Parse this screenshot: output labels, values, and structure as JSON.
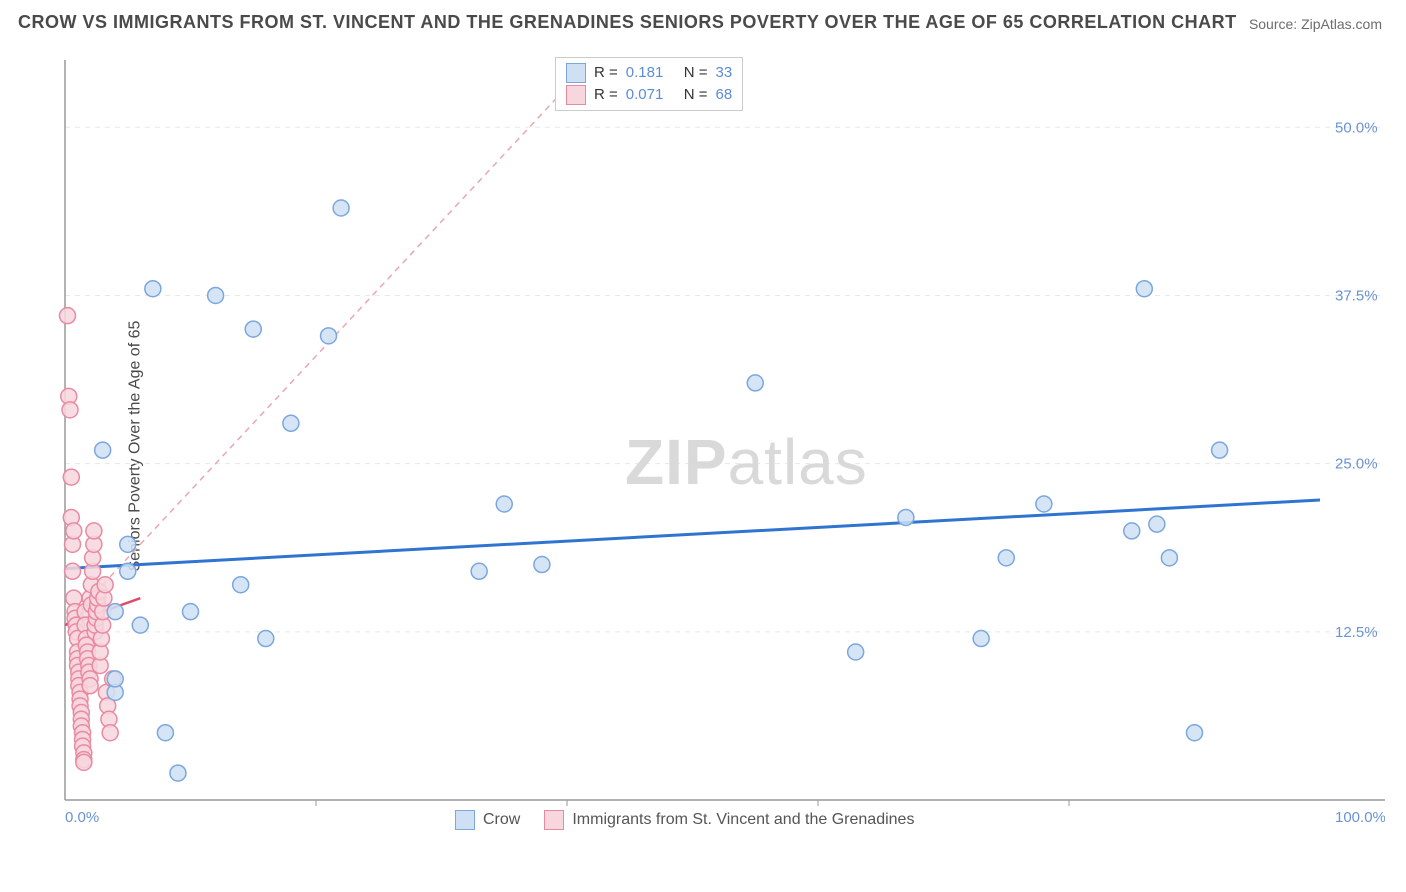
{
  "title": "CROW VS IMMIGRANTS FROM ST. VINCENT AND THE GRENADINES SENIORS POVERTY OVER THE AGE OF 65 CORRELATION CHART",
  "source_label": "Source: ZipAtlas.com",
  "ylabel": "Seniors Poverty Over the Age of 65",
  "watermark_bold": "ZIP",
  "watermark_light": "atlas",
  "chart": {
    "type": "scatter",
    "xlim": [
      0,
      100
    ],
    "ylim": [
      0,
      55
    ],
    "x_ticks": [
      0,
      100
    ],
    "x_tick_labels": [
      "0.0%",
      "100.0%"
    ],
    "y_ticks": [
      12.5,
      25.0,
      37.5,
      50.0
    ],
    "y_tick_labels": [
      "12.5%",
      "25.0%",
      "37.5%",
      "50.0%"
    ],
    "grid_color": "#e8e8e8",
    "axis_color": "#999999",
    "background": "#ffffff",
    "marker_radius": 8,
    "marker_stroke_width": 1.5,
    "series": [
      {
        "name": "Crow",
        "fill": "#cfe0f5",
        "stroke": "#7aa7dd",
        "trend": {
          "x1": 0,
          "y1": 17.2,
          "x2": 100,
          "y2": 22.3,
          "stroke": "#2f74d0",
          "width": 3,
          "dash": "none"
        },
        "points": [
          [
            4,
            14
          ],
          [
            5,
            19
          ],
          [
            5,
            17
          ],
          [
            7,
            38
          ],
          [
            8,
            5
          ],
          [
            9,
            2
          ],
          [
            10,
            14
          ],
          [
            12,
            37.5
          ],
          [
            14,
            16
          ],
          [
            15,
            35
          ],
          [
            16,
            12
          ],
          [
            18,
            28
          ],
          [
            21,
            34.5
          ],
          [
            22,
            44
          ],
          [
            33,
            17
          ],
          [
            35,
            22
          ],
          [
            38,
            17.5
          ],
          [
            55,
            31
          ],
          [
            63,
            11
          ],
          [
            67,
            21
          ],
          [
            73,
            12
          ],
          [
            75,
            18
          ],
          [
            78,
            22
          ],
          [
            85,
            20
          ],
          [
            86,
            38
          ],
          [
            87,
            20.5
          ],
          [
            88,
            18
          ],
          [
            90,
            5
          ],
          [
            92,
            26
          ],
          [
            3,
            26
          ],
          [
            4,
            8
          ],
          [
            6,
            13
          ],
          [
            4,
            9
          ]
        ]
      },
      {
        "name": "Immigrants from St. Vincent and the Grenadines",
        "fill": "#f7d6de",
        "stroke": "#e98aa0",
        "trend": {
          "x1": 0,
          "y1": 13,
          "x2": 42,
          "y2": 55,
          "stroke": "#e9a6b4",
          "width": 1.5,
          "dash": "6,5"
        },
        "trend_solid": {
          "x1": 0,
          "y1": 13,
          "x2": 6,
          "y2": 15,
          "stroke": "#e14b6a",
          "width": 2.5
        },
        "points": [
          [
            0.2,
            36
          ],
          [
            0.3,
            30
          ],
          [
            0.4,
            29
          ],
          [
            0.5,
            24
          ],
          [
            0.5,
            21
          ],
          [
            0.6,
            19
          ],
          [
            0.6,
            17
          ],
          [
            0.7,
            20
          ],
          [
            0.7,
            15
          ],
          [
            0.8,
            14
          ],
          [
            0.8,
            13.5
          ],
          [
            0.9,
            13
          ],
          [
            0.9,
            12.5
          ],
          [
            1,
            12
          ],
          [
            1,
            11
          ],
          [
            1,
            10.5
          ],
          [
            1,
            10
          ],
          [
            1.1,
            9.5
          ],
          [
            1.1,
            9
          ],
          [
            1.1,
            8.5
          ],
          [
            1.2,
            8
          ],
          [
            1.2,
            7.5
          ],
          [
            1.2,
            7
          ],
          [
            1.3,
            6.5
          ],
          [
            1.3,
            6
          ],
          [
            1.3,
            5.5
          ],
          [
            1.4,
            5
          ],
          [
            1.4,
            4.5
          ],
          [
            1.4,
            4
          ],
          [
            1.5,
            3.5
          ],
          [
            1.5,
            3
          ],
          [
            1.5,
            2.8
          ],
          [
            1.6,
            14
          ],
          [
            1.6,
            13
          ],
          [
            1.7,
            12
          ],
          [
            1.7,
            11.5
          ],
          [
            1.8,
            11
          ],
          [
            1.8,
            10.5
          ],
          [
            1.9,
            10
          ],
          [
            1.9,
            9.5
          ],
          [
            2,
            9
          ],
          [
            2,
            8.5
          ],
          [
            2,
            15
          ],
          [
            2.1,
            14.5
          ],
          [
            2.1,
            16
          ],
          [
            2.2,
            17
          ],
          [
            2.2,
            18
          ],
          [
            2.3,
            19
          ],
          [
            2.3,
            20
          ],
          [
            2.4,
            12.5
          ],
          [
            2.4,
            13
          ],
          [
            2.5,
            13.5
          ],
          [
            2.5,
            14
          ],
          [
            2.6,
            14.5
          ],
          [
            2.6,
            15
          ],
          [
            2.7,
            15.5
          ],
          [
            2.8,
            10
          ],
          [
            2.8,
            11
          ],
          [
            2.9,
            12
          ],
          [
            3,
            13
          ],
          [
            3,
            14
          ],
          [
            3.1,
            15
          ],
          [
            3.2,
            16
          ],
          [
            3.3,
            8
          ],
          [
            3.4,
            7
          ],
          [
            3.5,
            6
          ],
          [
            3.6,
            5
          ],
          [
            3.8,
            9
          ]
        ]
      }
    ],
    "stats_legend": {
      "rows": [
        {
          "swatch_fill": "#cfe0f5",
          "swatch_stroke": "#7aa7dd",
          "r_label": "R =",
          "r_val": "0.181",
          "n_label": "N =",
          "n_val": "33"
        },
        {
          "swatch_fill": "#f7d6de",
          "swatch_stroke": "#e98aa0",
          "r_label": "R =",
          "r_val": "0.071",
          "n_label": "N =",
          "n_val": "68"
        }
      ]
    },
    "bottom_legend": [
      {
        "swatch_fill": "#cfe0f5",
        "swatch_stroke": "#7aa7dd",
        "label": "Crow"
      },
      {
        "swatch_fill": "#f7d6de",
        "swatch_stroke": "#e98aa0",
        "label": "Immigrants from St. Vincent and the Grenadines"
      }
    ]
  }
}
